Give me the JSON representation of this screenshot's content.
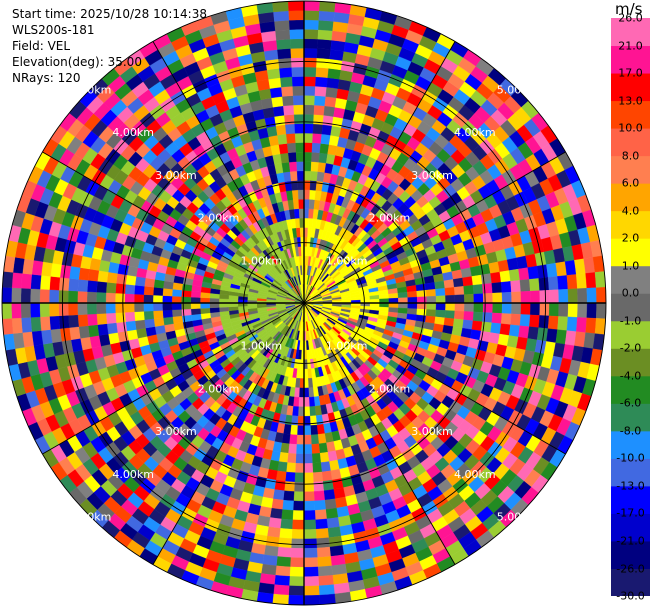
{
  "info": {
    "start_time_label": "Start time:",
    "start_time": "2025/10/28 10:14:38",
    "instrument": "WLS200s-181",
    "field_label": "Field:",
    "field": "VEL",
    "elevation_label": "Elevation(deg):",
    "elevation": "35.00",
    "nrays_label": "NRays:",
    "nrays": "120"
  },
  "colorbar": {
    "unit": "m/s",
    "colors": [
      "#191970",
      "#000080",
      "#0000cd",
      "#0000ff",
      "#4169e1",
      "#1e90ff",
      "#2e8b57",
      "#228b22",
      "#6b8e23",
      "#9acd32",
      "#696969",
      "#808080",
      "#ffff00",
      "#ffd700",
      "#ffa500",
      "#ff7f50",
      "#ff6347",
      "#ff4500",
      "#ff0000",
      "#ff1493",
      "#ff69b4"
    ],
    "tick_labels": [
      "-30.0",
      "-26.0",
      "-21.0",
      "-17.0",
      "-13.0",
      "-10.0",
      "-8.0",
      "-6.0",
      "-4.0",
      "-2.0",
      "-1.0",
      "0.0",
      "1.0",
      "2.0",
      "4.0",
      "6.0",
      "8.0",
      "10.0",
      "13.0",
      "17.0",
      "21.0",
      "26.0"
    ]
  },
  "chart_data": {
    "type": "heatmap",
    "subtype": "polar-ppi",
    "field": "VEL",
    "units": "m/s",
    "color_range": [
      -30.0,
      26.0
    ],
    "n_rays": 120,
    "range_ring_labels": [
      "1.00km",
      "2.00km",
      "3.00km",
      "4.00km",
      "5.00km"
    ],
    "range_rings_km": [
      1,
      2,
      3,
      4,
      5
    ],
    "max_range_km": 5,
    "spokes_deg": 30,
    "grid": true
  }
}
